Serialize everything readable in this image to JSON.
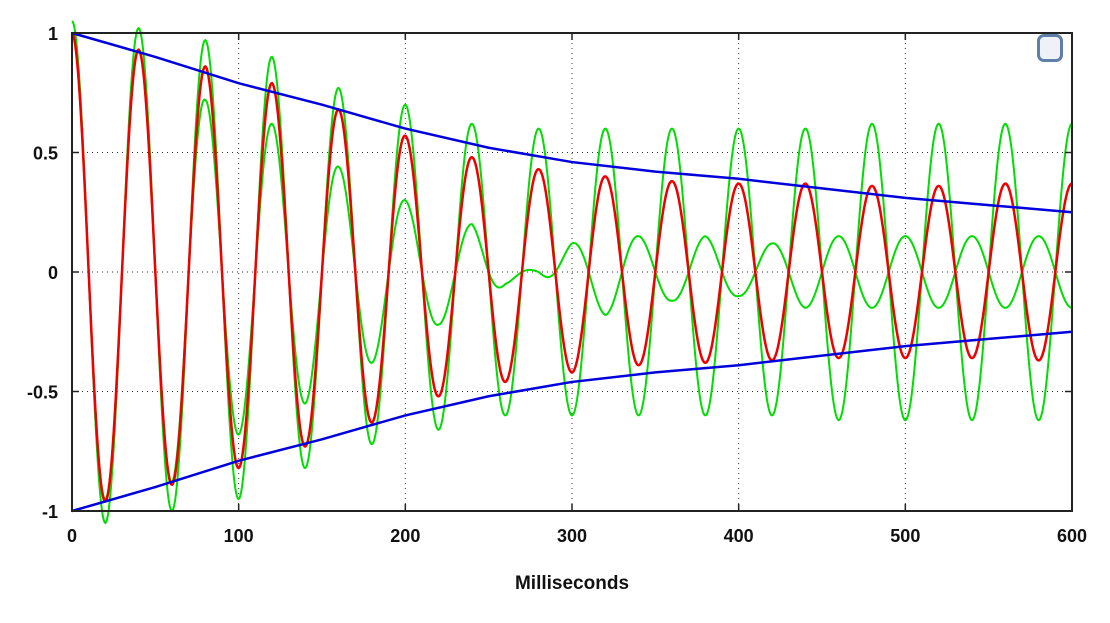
{
  "chart_data": {
    "type": "line",
    "title": "",
    "xlabel": "Milliseconds",
    "ylabel": "",
    "xlim": [
      0,
      600
    ],
    "ylim": [
      -1,
      1
    ],
    "x_ticks": [
      0,
      100,
      200,
      300,
      400,
      500,
      600
    ],
    "x_tick_labels": [
      "0",
      "100",
      "200",
      "300",
      "400",
      "500",
      "600"
    ],
    "y_ticks": [
      1,
      0.5,
      0,
      -0.5,
      -1
    ],
    "y_tick_labels": [
      "1",
      "0.5",
      "0",
      "-0.5",
      "-1"
    ],
    "grid": true,
    "legend": "none",
    "series": [
      {
        "color": "#0000dd",
        "description": "decay envelope (upper and lower)",
        "x": [
          0,
          50,
          100,
          150,
          200,
          250,
          300,
          350,
          400,
          450,
          500,
          550,
          600
        ],
        "upper": [
          1.0,
          0.9,
          0.79,
          0.7,
          0.6,
          0.52,
          0.46,
          0.42,
          0.39,
          0.35,
          0.31,
          0.28,
          0.25
        ],
        "lower": [
          -1.0,
          -0.9,
          -0.79,
          -0.7,
          -0.6,
          -0.52,
          -0.46,
          -0.42,
          -0.39,
          -0.35,
          -0.31,
          -0.28,
          -0.25
        ]
      },
      {
        "color": "#ee0000",
        "description": "damped sinusoid",
        "period_ms": 40,
        "x": [
          0,
          20,
          40,
          60,
          80,
          100,
          120,
          140,
          160,
          180,
          200,
          220,
          240,
          260,
          280,
          300,
          320,
          340,
          360,
          380,
          400,
          420,
          440,
          460,
          480,
          500,
          520,
          540,
          560,
          580,
          600
        ],
        "y": [
          1.0,
          -0.96,
          0.93,
          -0.89,
          0.86,
          -0.82,
          0.79,
          -0.73,
          0.68,
          -0.63,
          0.57,
          -0.52,
          0.48,
          -0.46,
          0.43,
          -0.42,
          0.4,
          -0.39,
          0.38,
          -0.38,
          0.37,
          -0.37,
          0.37,
          -0.36,
          0.36,
          -0.36,
          0.36,
          -0.36,
          0.37,
          -0.37,
          0.37
        ]
      },
      {
        "color": "#00dd00",
        "description": "amplitude-varying sinusoid",
        "period_ms": 40,
        "x": [
          0,
          20,
          40,
          60,
          80,
          100,
          120,
          140,
          160,
          180,
          200,
          220,
          240,
          260,
          280,
          300,
          320,
          340,
          360,
          380,
          400,
          420,
          440,
          460,
          480,
          500,
          520,
          540,
          560,
          580,
          600
        ],
        "y_max": [
          1.05,
          1.05,
          1.02,
          1.0,
          0.97,
          0.95,
          0.9,
          0.82,
          0.77,
          0.72,
          0.7,
          0.66,
          0.62,
          0.6,
          0.6,
          0.6,
          0.6,
          0.6,
          0.6,
          0.6,
          0.6,
          0.6,
          0.6,
          0.62,
          0.62,
          0.62,
          0.62,
          0.62,
          0.62,
          0.62,
          0.62
        ],
        "y_min_of_max": [
          1.0,
          0.95,
          0.93,
          0.88,
          0.72,
          0.68,
          0.62,
          0.55,
          0.44,
          0.38,
          0.3,
          0.22,
          0.2,
          0.05,
          0.0,
          -0.12,
          -0.18,
          -0.15,
          -0.12,
          -0.15,
          -0.1,
          -0.12,
          -0.15,
          -0.15,
          -0.15,
          -0.15,
          -0.15,
          -0.15,
          -0.15,
          -0.15,
          -0.15
        ]
      }
    ]
  },
  "legend_toggle": {
    "icon": "square-toggle-icon"
  }
}
